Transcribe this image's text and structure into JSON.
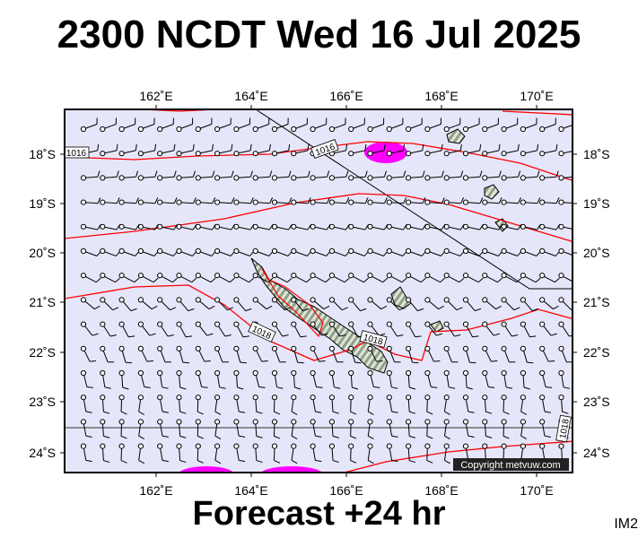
{
  "header": {
    "title": "2300 NCDT Wed 16 Jul 2025"
  },
  "footer": {
    "forecast_label": "Forecast +24 hr",
    "product_code": "IM2"
  },
  "map": {
    "lon_range": [
      160,
      171
    ],
    "lat_range": [
      -24.4,
      -17.3
    ],
    "lon_ticks": [
      "162˚E",
      "164˚E",
      "166˚E",
      "168˚E",
      "170˚E"
    ],
    "lat_ticks": [
      "18˚S",
      "19˚S",
      "20˚S",
      "21˚S",
      "22˚S",
      "23˚S",
      "24˚S"
    ],
    "isobar_labels": [
      "1016",
      "1016",
      "1018",
      "1018",
      "1018"
    ],
    "copyright": "Copyright metvuw.com",
    "colors": {
      "ocean": "#e6e6fa",
      "isobar": "#ff0000",
      "rain": "#ff00ff",
      "land": "#8fa08a",
      "frame": "#000000"
    }
  }
}
